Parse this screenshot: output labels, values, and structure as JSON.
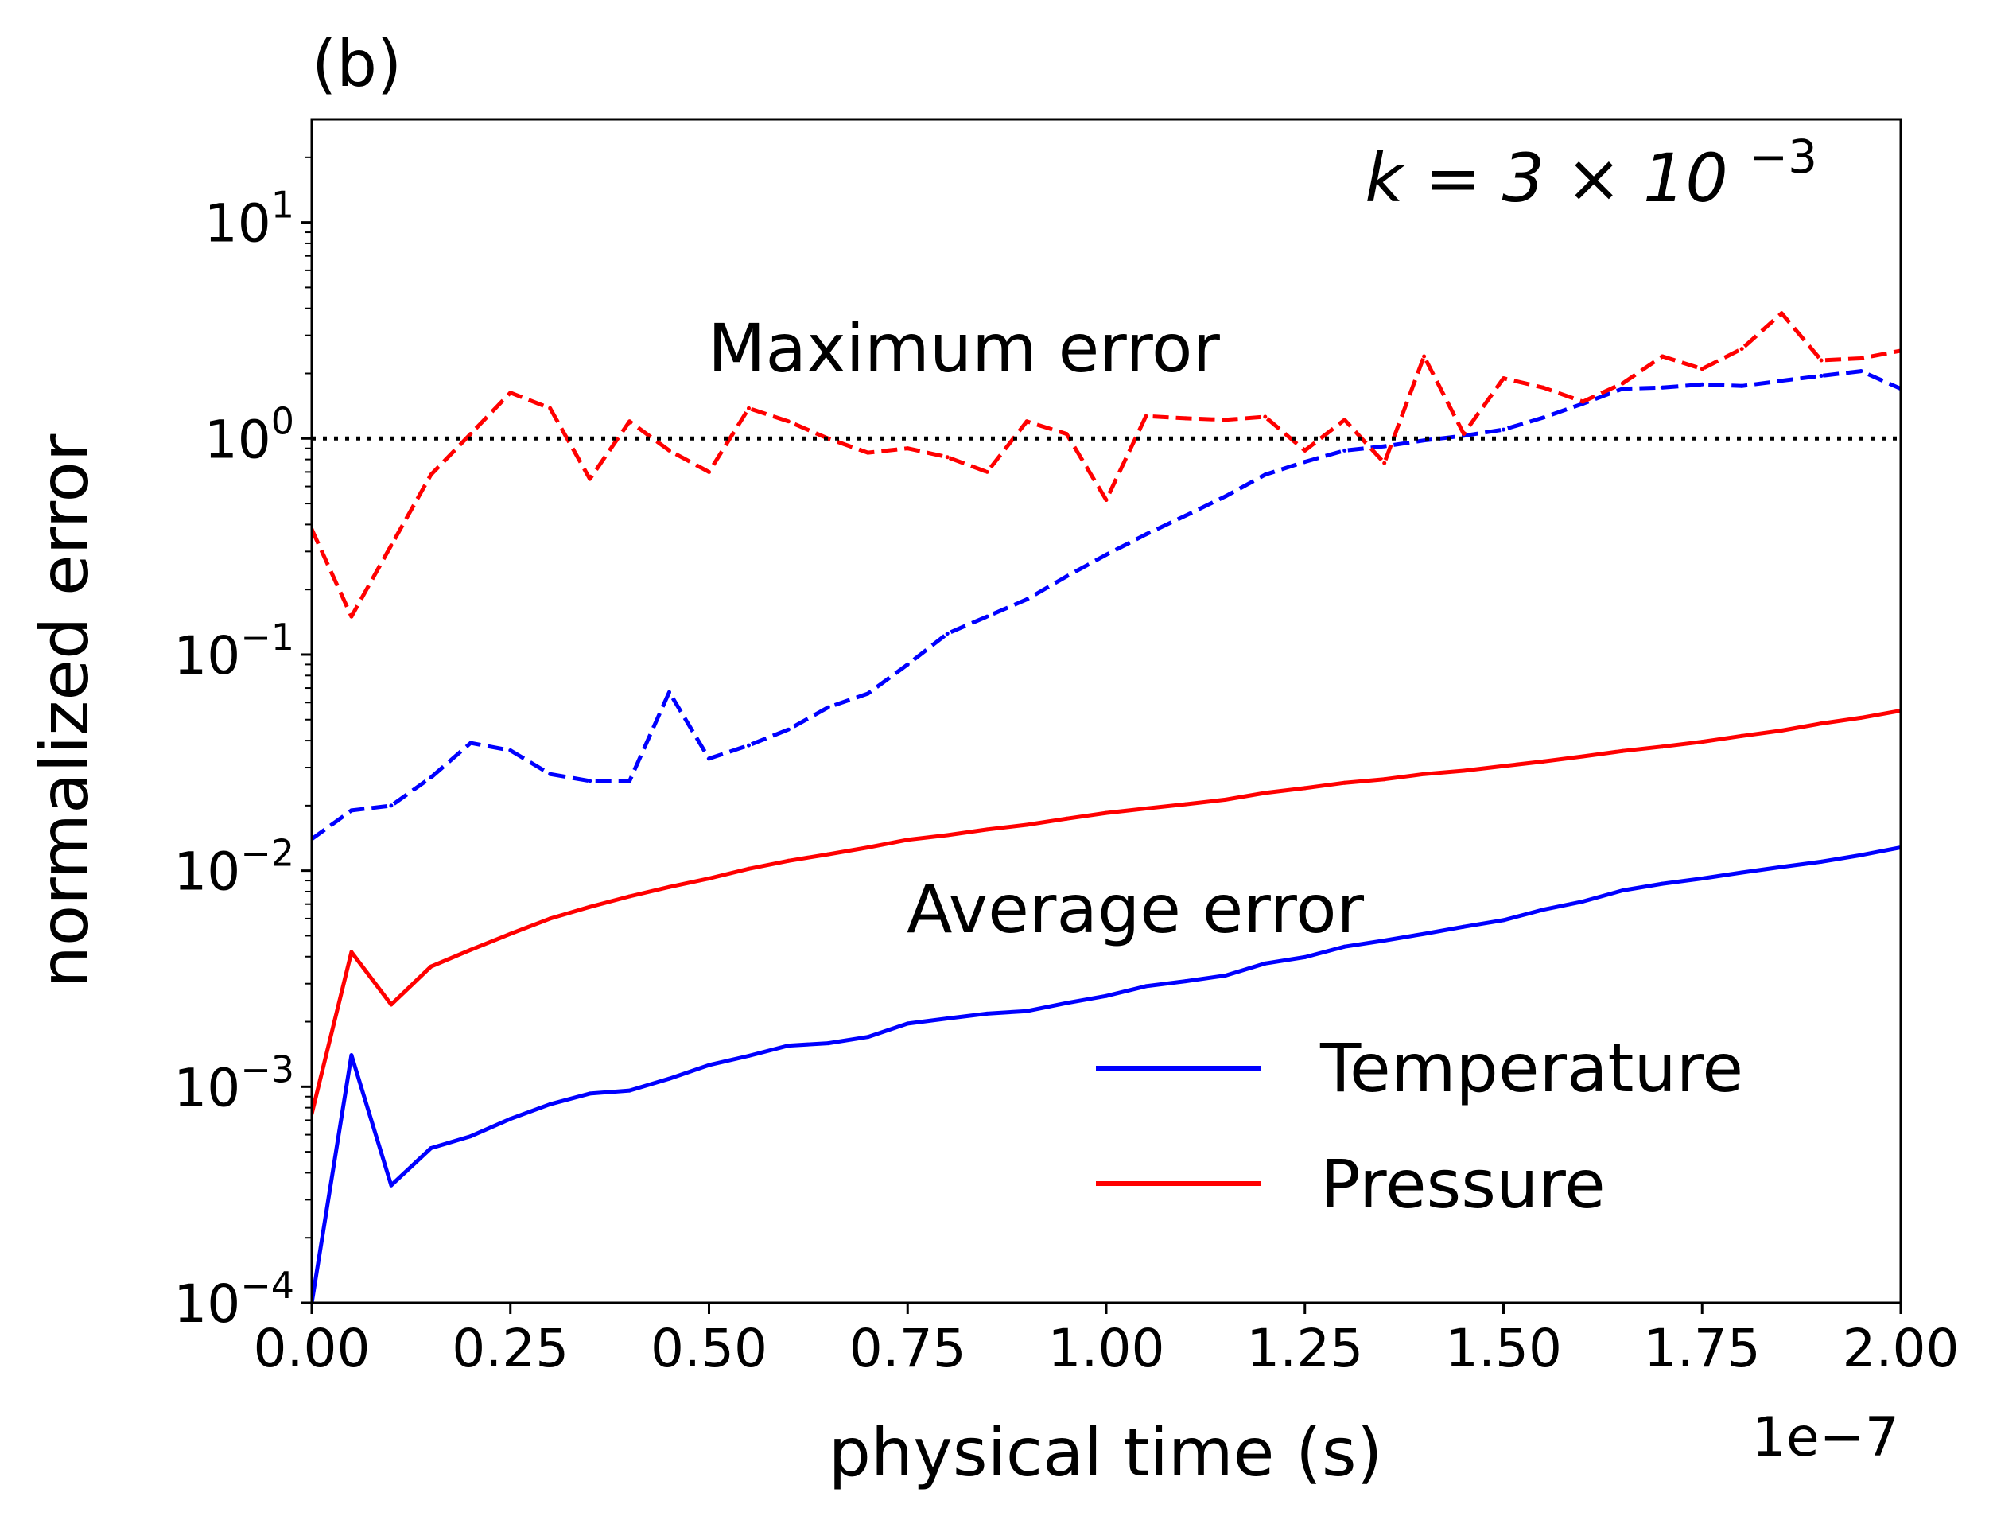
{
  "chart_data": {
    "type": "line",
    "panel_label": "(b)",
    "xlabel": "physical time (s)",
    "ylabel": "normalized error",
    "x_offset_label": "1e−7",
    "annotation_k": {
      "base": "k = 3 × 10",
      "exp": "−3"
    },
    "annotation_max": "Maximum error",
    "annotation_avg": "Average error",
    "xlim": [
      0,
      2e-07
    ],
    "ylim": [
      0.0001,
      30
    ],
    "yscale": "log",
    "grid": false,
    "legend_position": "lower-right",
    "x_ticks": [
      {
        "value": 0,
        "label": "0.00"
      },
      {
        "value": 2.5e-08,
        "label": "0.25"
      },
      {
        "value": 5e-08,
        "label": "0.50"
      },
      {
        "value": 7.5e-08,
        "label": "0.75"
      },
      {
        "value": 1e-07,
        "label": "1.00"
      },
      {
        "value": 1.25e-07,
        "label": "1.25"
      },
      {
        "value": 1.5e-07,
        "label": "1.50"
      },
      {
        "value": 1.75e-07,
        "label": "1.75"
      },
      {
        "value": 2e-07,
        "label": "2.00"
      }
    ],
    "y_ticks": [
      {
        "value": 0.0001,
        "base": "10",
        "exp": "−4"
      },
      {
        "value": 0.001,
        "base": "10",
        "exp": "−3"
      },
      {
        "value": 0.01,
        "base": "10",
        "exp": "−2"
      },
      {
        "value": 0.1,
        "base": "10",
        "exp": "−1"
      },
      {
        "value": 1,
        "base": "10",
        "exp": "0"
      },
      {
        "value": 10,
        "base": "10",
        "exp": "1"
      }
    ],
    "reference_line": {
      "y": 1,
      "style": "dotted",
      "color": "#000000"
    },
    "legend": [
      {
        "label": "Temperature",
        "color": "#0000ff"
      },
      {
        "label": "Pressure",
        "color": "#ff0000"
      }
    ],
    "x": [
      0,
      5e-09,
      1e-08,
      1.5e-08,
      2e-08,
      2.5e-08,
      3e-08,
      3.5e-08,
      4e-08,
      4.5e-08,
      5e-08,
      5.5e-08,
      6e-08,
      6.5e-08,
      7e-08,
      7.5e-08,
      8e-08,
      8.5e-08,
      9e-08,
      9.5e-08,
      1e-07,
      1.05e-07,
      1.1e-07,
      1.15e-07,
      1.2e-07,
      1.25e-07,
      1.3e-07,
      1.35e-07,
      1.4e-07,
      1.45e-07,
      1.5e-07,
      1.55e-07,
      1.6e-07,
      1.65e-07,
      1.7e-07,
      1.75e-07,
      1.8e-07,
      1.85e-07,
      1.9e-07,
      1.95e-07,
      2e-07
    ],
    "series": [
      {
        "color": "#0000ff",
        "style": "dashed",
        "group": "max",
        "values": [
          0.014,
          0.019,
          0.02,
          0.027,
          0.039,
          0.036,
          0.028,
          0.026,
          0.026,
          0.067,
          0.033,
          0.038,
          0.045,
          0.057,
          0.066,
          0.09,
          0.125,
          0.15,
          0.18,
          0.23,
          0.29,
          0.36,
          0.44,
          0.54,
          0.68,
          0.78,
          0.88,
          0.92,
          0.98,
          1.03,
          1.1,
          1.25,
          1.45,
          1.7,
          1.72,
          1.78,
          1.75,
          1.85,
          1.95,
          2.05,
          1.7
        ]
      },
      {
        "color": "#ff0000",
        "style": "dashed",
        "group": "max",
        "values": [
          0.38,
          0.15,
          0.32,
          0.68,
          1.05,
          1.63,
          1.38,
          0.65,
          1.2,
          0.88,
          0.7,
          1.38,
          1.2,
          1.0,
          0.86,
          0.9,
          0.82,
          0.7,
          1.2,
          1.05,
          0.52,
          1.27,
          1.24,
          1.22,
          1.26,
          0.88,
          1.22,
          0.77,
          2.4,
          1.05,
          1.9,
          1.72,
          1.48,
          1.8,
          2.4,
          2.1,
          2.6,
          3.8,
          2.3,
          2.35,
          2.55
        ]
      },
      {
        "color": "#ff0000",
        "style": "solid",
        "group": "avg",
        "values": [
          0.00075,
          0.0042,
          0.0024,
          0.0036,
          0.0043,
          0.0051,
          0.006,
          0.0068,
          0.0076,
          0.0084,
          0.0092,
          0.0102,
          0.0111,
          0.0119,
          0.0128,
          0.0139,
          0.0146,
          0.0155,
          0.0163,
          0.0174,
          0.0185,
          0.0194,
          0.0203,
          0.0213,
          0.0229,
          0.0241,
          0.0255,
          0.0265,
          0.028,
          0.029,
          0.0305,
          0.032,
          0.0338,
          0.0358,
          0.0375,
          0.0395,
          0.042,
          0.0445,
          0.048,
          0.051,
          0.055
        ]
      },
      {
        "color": "#0000ff",
        "style": "solid",
        "group": "avg",
        "values": [
          0.0001,
          0.0014,
          0.00035,
          0.00052,
          0.00059,
          0.00071,
          0.00083,
          0.00093,
          0.00096,
          0.00109,
          0.00126,
          0.00139,
          0.00155,
          0.00159,
          0.0017,
          0.00196,
          0.00207,
          0.00218,
          0.00224,
          0.00244,
          0.00263,
          0.00292,
          0.00308,
          0.00327,
          0.00372,
          0.00398,
          0.00445,
          0.00475,
          0.0051,
          0.0055,
          0.0059,
          0.0066,
          0.0072,
          0.0081,
          0.0087,
          0.0092,
          0.0098,
          0.0104,
          0.011,
          0.0118,
          0.0128
        ]
      }
    ]
  }
}
